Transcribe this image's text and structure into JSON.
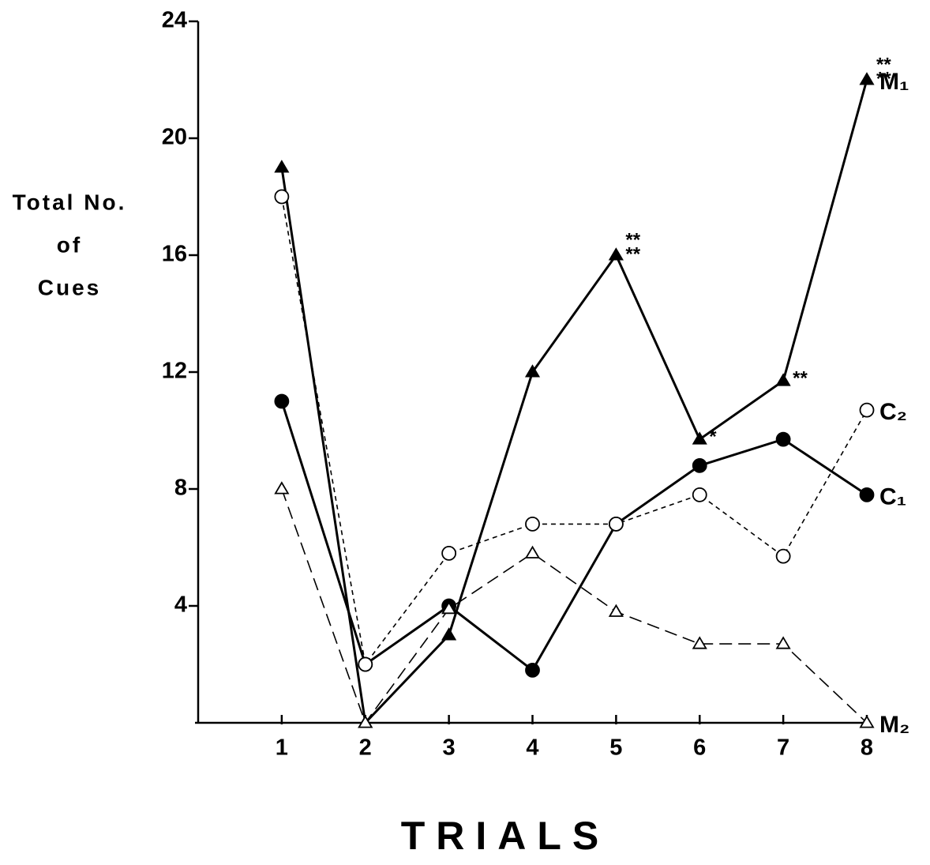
{
  "chart_data": {
    "type": "line",
    "ylabel": [
      "Total No.",
      "of",
      "Cues"
    ],
    "xlabel": "TRIALS",
    "x": [
      1,
      2,
      3,
      4,
      5,
      6,
      7,
      8
    ],
    "xlim": [
      0,
      8
    ],
    "xticks": [
      1,
      2,
      3,
      4,
      5,
      6,
      7,
      8
    ],
    "ylim": [
      0,
      24
    ],
    "yticks": [
      4,
      8,
      12,
      16,
      20,
      24
    ],
    "grid": false,
    "series": [
      {
        "name": "M₁",
        "color": "#000000",
        "line": "solid",
        "marker": "filled-triangle",
        "values": [
          19,
          0,
          3,
          12,
          16,
          9.7,
          11.7,
          22
        ]
      },
      {
        "name": "C₁",
        "color": "#000000",
        "line": "solid",
        "marker": "filled-circle",
        "values": [
          11,
          2,
          4,
          1.8,
          6.8,
          8.8,
          9.7,
          7.8
        ]
      },
      {
        "name": "C₂",
        "color": "#000000",
        "line": "short-dash",
        "marker": "open-circle",
        "values": [
          18,
          2,
          5.8,
          6.8,
          6.8,
          7.8,
          5.7,
          10.7
        ]
      },
      {
        "name": "M₂",
        "color": "#000000",
        "line": "long-dash",
        "marker": "open-triangle",
        "values": [
          8,
          0,
          3.9,
          5.8,
          3.8,
          2.7,
          2.7,
          0
        ]
      }
    ],
    "annotations": [
      {
        "lines": [
          "**",
          "**"
        ],
        "x": 5
      },
      {
        "lines": [
          "*"
        ],
        "x": 6
      },
      {
        "lines": [
          "**"
        ],
        "x": 7
      },
      {
        "lines": [
          "**",
          "**"
        ],
        "x": 8
      }
    ]
  }
}
